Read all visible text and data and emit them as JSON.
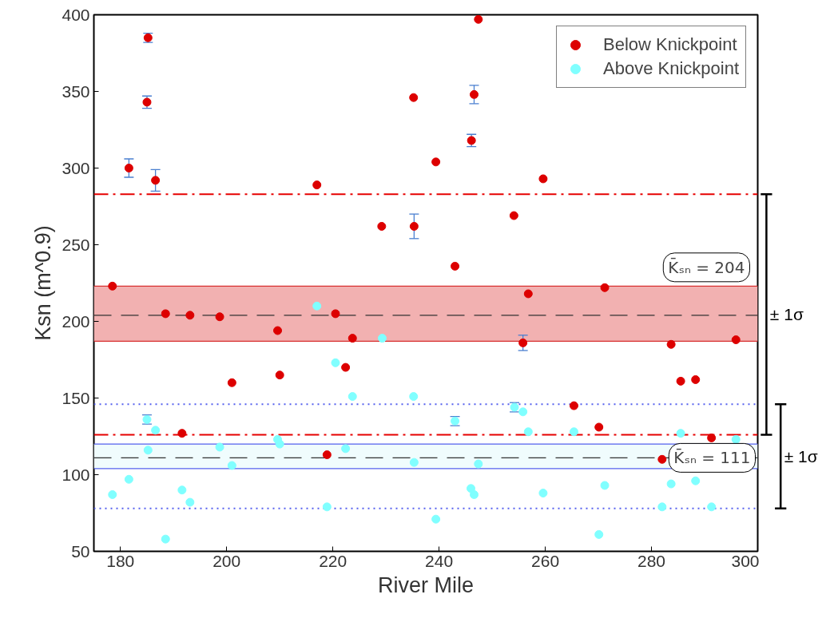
{
  "chart_data": {
    "type": "scatter",
    "xlabel": "River Mile",
    "ylabel": "Ksn (m^0.9)",
    "annotations": [
      "± 1σ",
      "± 1σ"
    ],
    "xlim": [
      175,
      300
    ],
    "xticks": [
      180,
      200,
      220,
      240,
      260,
      280,
      300
    ],
    "ylim": [
      50,
      400
    ],
    "yticks": [
      50,
      100,
      150,
      200,
      250,
      300,
      350,
      400
    ],
    "grid": false,
    "legend": "top right",
    "marker": "circle",
    "series": [
      {
        "name": "Below Knickpoint",
        "color": "#dd0000",
        "x": [
          178.5,
          181.6,
          185.2,
          185.0,
          186.6,
          188.5,
          191.6,
          193.1,
          198.7,
          201.0,
          209.6,
          210.0,
          217.0,
          218.9,
          220.5,
          222.4,
          223.7,
          229.2,
          235.2,
          235.3,
          239.4,
          243.0,
          246.1,
          246.6,
          247.4,
          254.1,
          255.8,
          256.8,
          259.6,
          265.4,
          270.1,
          271.2,
          282.0,
          283.7,
          285.5,
          288.3,
          291.3,
          295.9
        ],
        "values": [
          223,
          300,
          385,
          343,
          292,
          205,
          127,
          204,
          203,
          160,
          194,
          165,
          289,
          113,
          205,
          170,
          189,
          262,
          346,
          262,
          304,
          236,
          318,
          348,
          397,
          269,
          186,
          218,
          293,
          145,
          131,
          222,
          110,
          185,
          161,
          162,
          124,
          188
        ],
        "errors": [
          null,
          6,
          3,
          4,
          7,
          null,
          null,
          null,
          null,
          null,
          null,
          null,
          null,
          null,
          null,
          null,
          null,
          null,
          null,
          8,
          null,
          null,
          4,
          6,
          null,
          null,
          5,
          null,
          null,
          null,
          null,
          null,
          null,
          null,
          null,
          null,
          null,
          null
        ]
      },
      {
        "name": "Above Knickpoint",
        "color": "#80ffff",
        "x": [
          178.5,
          181.6,
          185.0,
          185.2,
          186.6,
          188.5,
          191.6,
          193.1,
          198.7,
          201.0,
          209.6,
          210.0,
          217.0,
          218.9,
          220.5,
          222.4,
          223.7,
          229.3,
          235.2,
          235.3,
          239.4,
          243.0,
          246.0,
          246.6,
          247.4,
          254.2,
          255.8,
          256.8,
          259.6,
          265.4,
          270.1,
          271.2,
          282.0,
          283.7,
          285.5,
          288.3,
          291.3,
          295.9
        ],
        "values": [
          87,
          97,
          136,
          116,
          129,
          58,
          90,
          82,
          118,
          106,
          123,
          120,
          210,
          79,
          173,
          117,
          151,
          189,
          151,
          108,
          71,
          135,
          91,
          87,
          107,
          144,
          141,
          128,
          88,
          128,
          61,
          93,
          79,
          94,
          127,
          96,
          79,
          123
        ],
        "errors": [
          null,
          null,
          3,
          null,
          null,
          null,
          null,
          null,
          null,
          null,
          null,
          null,
          null,
          null,
          null,
          null,
          null,
          null,
          null,
          null,
          null,
          3,
          null,
          null,
          null,
          3,
          null,
          null,
          null,
          null,
          null,
          null,
          null,
          null,
          null,
          null,
          null,
          null
        ]
      }
    ],
    "bands": [
      {
        "axis": "y",
        "from": 187,
        "to": 223,
        "color": "#f2b1b1"
      },
      {
        "axis": "y",
        "from": 104,
        "to": 120,
        "color": "#f0fcfd"
      }
    ],
    "ref_lines": [
      {
        "axis": "y",
        "value": 223,
        "color": "#d83030",
        "line_style": "solid"
      },
      {
        "axis": "y",
        "value": 187,
        "color": "#d83030",
        "line_style": "solid"
      },
      {
        "axis": "y",
        "value": 120,
        "color": "#5560ee",
        "line_style": "solid"
      },
      {
        "axis": "y",
        "value": 104,
        "color": "#5560ee",
        "line_style": "solid"
      },
      {
        "axis": "y",
        "value": 204,
        "label": "K̄ₛₙ = 204",
        "color": "#333333",
        "line_style": "dashed"
      },
      {
        "axis": "y",
        "value": 111,
        "label": "K̄ₛₙ = 111",
        "color": "#333333",
        "line_style": "dashed"
      },
      {
        "axis": "y",
        "value": 283,
        "color": "#e60000",
        "line_style": "dashdot"
      },
      {
        "axis": "y",
        "value": 126,
        "color": "#e60000",
        "line_style": "dashdot"
      },
      {
        "axis": "y",
        "value": 146,
        "color": "#5560ee",
        "line_style": "dotted"
      },
      {
        "axis": "y",
        "value": 78,
        "color": "#5560ee",
        "line_style": "dotted"
      }
    ]
  }
}
